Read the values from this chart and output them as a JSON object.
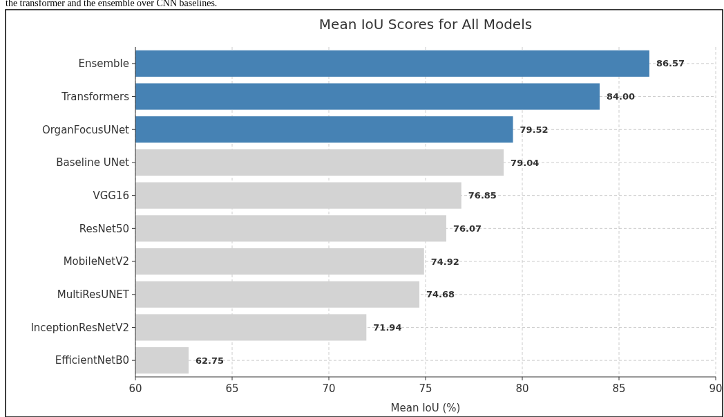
{
  "chart_data": {
    "type": "bar",
    "orientation": "horizontal",
    "title": "Mean IoU Scores for All Models",
    "xlabel": "Mean IoU (%)",
    "annotations": [
      "the transformer and the ensemble over CNN baselines."
    ],
    "categories": [
      "Ensemble",
      "Transformers",
      "OrganFocusUNet",
      "Baseline UNet",
      "VGG16",
      "ResNet50",
      "MobileNetV2",
      "MultiResUNET",
      "InceptionResNetV2",
      "EfficientNetB0"
    ],
    "values": [
      86.57,
      84.0,
      79.52,
      79.04,
      76.85,
      76.07,
      74.92,
      74.68,
      71.94,
      62.75
    ],
    "value_labels": [
      "86.57",
      "84.00",
      "79.52",
      "79.04",
      "76.85",
      "76.07",
      "74.92",
      "74.68",
      "71.94",
      "62.75"
    ],
    "colors": [
      "#4682b4",
      "#4682b4",
      "#4682b4",
      "#d3d3d3",
      "#d3d3d3",
      "#d3d3d3",
      "#d3d3d3",
      "#d3d3d3",
      "#d3d3d3",
      "#d3d3d3"
    ],
    "xlim": [
      60,
      90
    ],
    "xticks": [
      60,
      65,
      70,
      75,
      80,
      85,
      90
    ],
    "grid": true
  }
}
